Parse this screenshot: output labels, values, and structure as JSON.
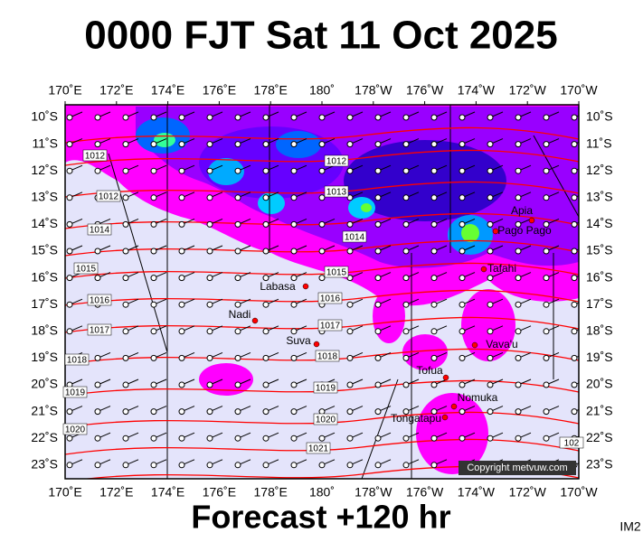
{
  "header": {
    "title": "0000 FJT Sat 11 Oct 2025"
  },
  "axes": {
    "x_labels": [
      "170˚E",
      "172˚E",
      "174˚E",
      "176˚E",
      "178˚E",
      "180˚",
      "178˚W",
      "176˚W",
      "174˚W",
      "172˚W",
      "170˚W"
    ],
    "y_labels": [
      "10˚S",
      "11˚S",
      "12˚S",
      "13˚S",
      "14˚S",
      "15˚S",
      "16˚S",
      "17˚S",
      "18˚S",
      "19˚S",
      "20˚S",
      "21˚S",
      "22˚S",
      "23˚S"
    ]
  },
  "isobar_labels": [
    "1012",
    "1012",
    "1012",
    "1013",
    "1014",
    "1014",
    "1015",
    "1015",
    "1016",
    "1016",
    "1017",
    "1017",
    "1018",
    "1018",
    "1019",
    "1019",
    "1020",
    "1020",
    "1021",
    "102"
  ],
  "places": [
    "Apia",
    "Pago Pago",
    "Tafahi",
    "Labasa",
    "Nadi",
    "Suva",
    "Vava'u",
    "Tofua",
    "Nomuka",
    "Tongatapu"
  ],
  "copyright": "Copyright metvuw.com",
  "footer": "Forecast +120 hr",
  "corner": "IM2"
}
